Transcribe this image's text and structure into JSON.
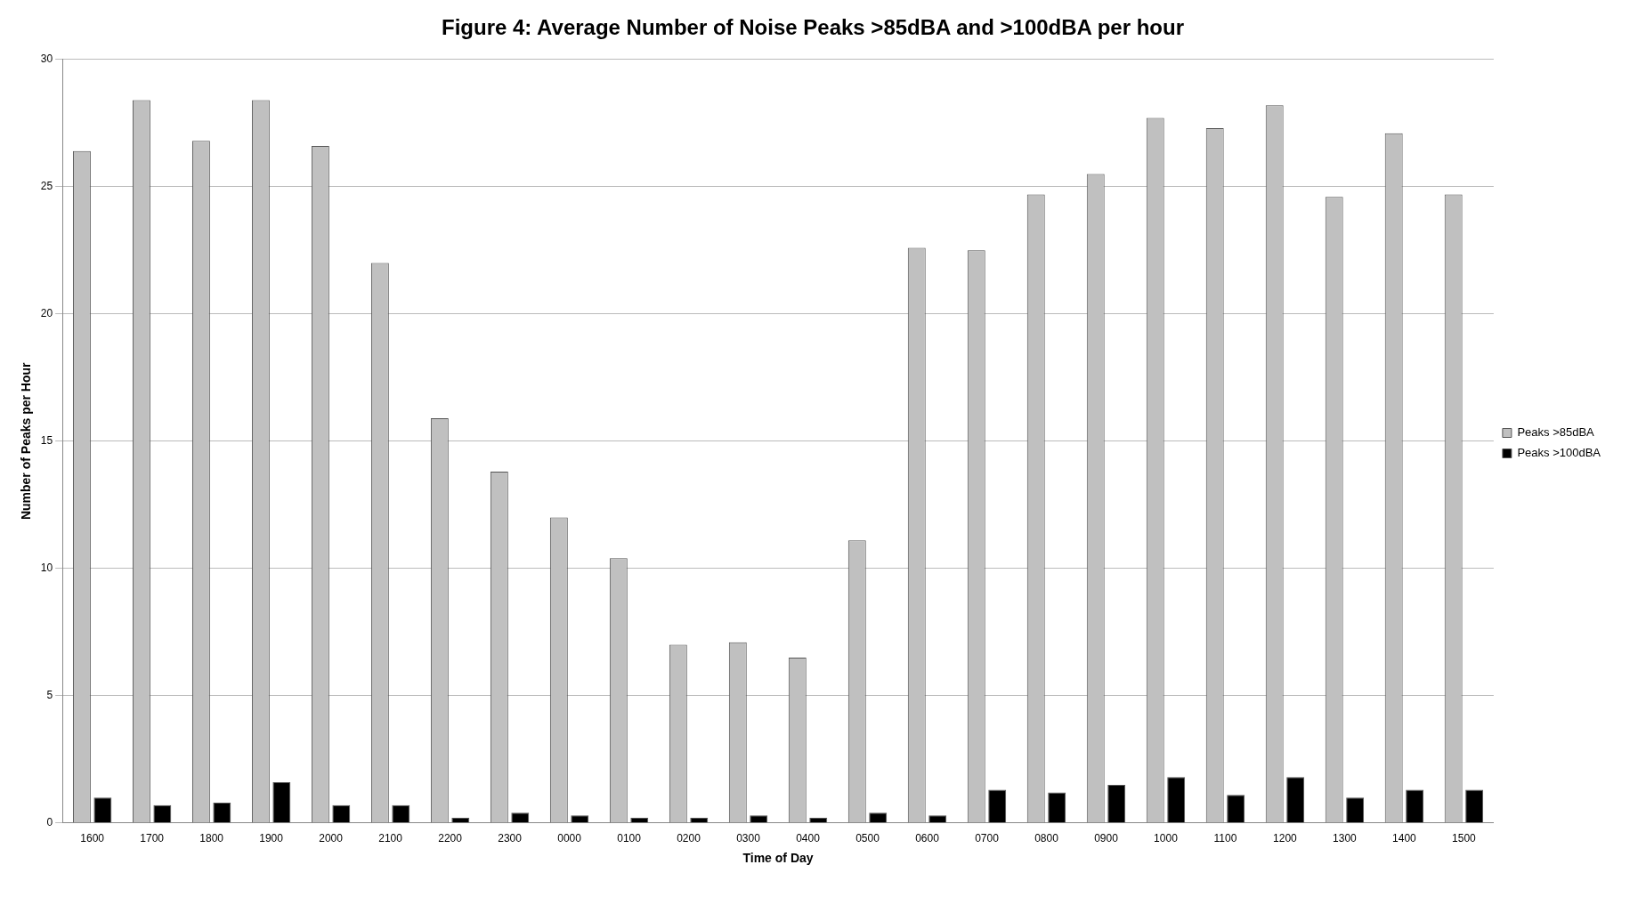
{
  "chart_data": {
    "type": "bar",
    "title": "Figure 4: Average Number of Noise Peaks >85dBA and >100dBA per hour",
    "xlabel": "Time of Day",
    "ylabel": "Number of Peaks per Hour",
    "categories": [
      "1600",
      "1700",
      "1800",
      "1900",
      "2000",
      "2100",
      "2200",
      "2300",
      "0000",
      "0100",
      "0200",
      "0300",
      "0400",
      "0500",
      "0600",
      "0700",
      "0800",
      "0900",
      "1000",
      "1100",
      "1200",
      "1300",
      "1400",
      "1500"
    ],
    "series": [
      {
        "name": "Peaks >85dBA",
        "color": "#c0c0c0",
        "values": [
          26.4,
          28.4,
          26.8,
          28.4,
          26.6,
          22.0,
          15.9,
          13.8,
          12.0,
          10.4,
          7.0,
          7.1,
          6.5,
          11.1,
          22.6,
          22.5,
          24.7,
          25.5,
          27.7,
          27.3,
          28.2,
          24.6,
          27.1,
          24.7
        ]
      },
      {
        "name": "Peaks >100dBA",
        "color": "#000000",
        "values": [
          1.0,
          0.7,
          0.8,
          1.6,
          0.7,
          0.7,
          0.2,
          0.4,
          0.3,
          0.2,
          0.2,
          0.3,
          0.2,
          0.4,
          0.3,
          1.3,
          1.2,
          1.5,
          1.8,
          1.1,
          1.8,
          1.0,
          1.3,
          1.3
        ]
      }
    ],
    "ylim": [
      0,
      30
    ],
    "yticks": [
      0,
      5,
      10,
      15,
      20,
      25,
      30
    ],
    "grid": "y",
    "legend": "right"
  }
}
